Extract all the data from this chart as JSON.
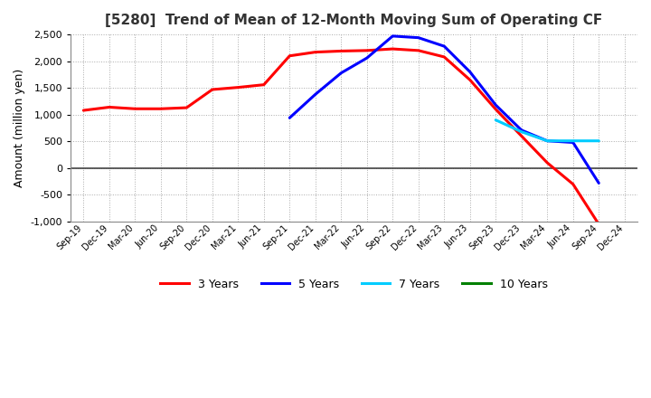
{
  "title": "[5280]  Trend of Mean of 12-Month Moving Sum of Operating CF",
  "ylabel": "Amount (million yen)",
  "ylim": [
    -1000,
    2500
  ],
  "yticks": [
    -1000,
    -500,
    0,
    500,
    1000,
    1500,
    2000,
    2500
  ],
  "background_color": "#ffffff",
  "x_labels": [
    "Sep-19",
    "Dec-19",
    "Mar-20",
    "Jun-20",
    "Sep-20",
    "Dec-20",
    "Mar-21",
    "Jun-21",
    "Sep-21",
    "Dec-21",
    "Mar-22",
    "Jun-22",
    "Sep-22",
    "Dec-22",
    "Mar-23",
    "Jun-23",
    "Sep-23",
    "Dec-23",
    "Mar-24",
    "Jun-24",
    "Sep-24",
    "Dec-24"
  ],
  "series": [
    {
      "name": "3 Years",
      "color": "#ff0000",
      "data_x": [
        0,
        1,
        2,
        3,
        4,
        5,
        6,
        7,
        8,
        9,
        10,
        11,
        12,
        13,
        14,
        15,
        16,
        17,
        18,
        19,
        20
      ],
      "data_y": [
        1080,
        1140,
        1110,
        1110,
        1130,
        1470,
        1510,
        1560,
        2100,
        2170,
        2190,
        2200,
        2230,
        2200,
        2080,
        1650,
        1100,
        600,
        100,
        -300,
        -1050
      ]
    },
    {
      "name": "5 Years",
      "color": "#0000ff",
      "data_x": [
        8,
        9,
        10,
        11,
        12,
        13,
        14,
        15,
        16,
        17,
        18,
        19,
        20
      ],
      "data_y": [
        940,
        1380,
        1780,
        2060,
        2470,
        2440,
        2280,
        1800,
        1180,
        710,
        510,
        480,
        -280
      ]
    },
    {
      "name": "7 Years",
      "color": "#00ccff",
      "data_x": [
        16,
        17,
        18,
        19,
        20
      ],
      "data_y": [
        900,
        680,
        510,
        510,
        510
      ]
    },
    {
      "name": "10 Years",
      "color": "#008000",
      "data_x": [],
      "data_y": []
    }
  ]
}
